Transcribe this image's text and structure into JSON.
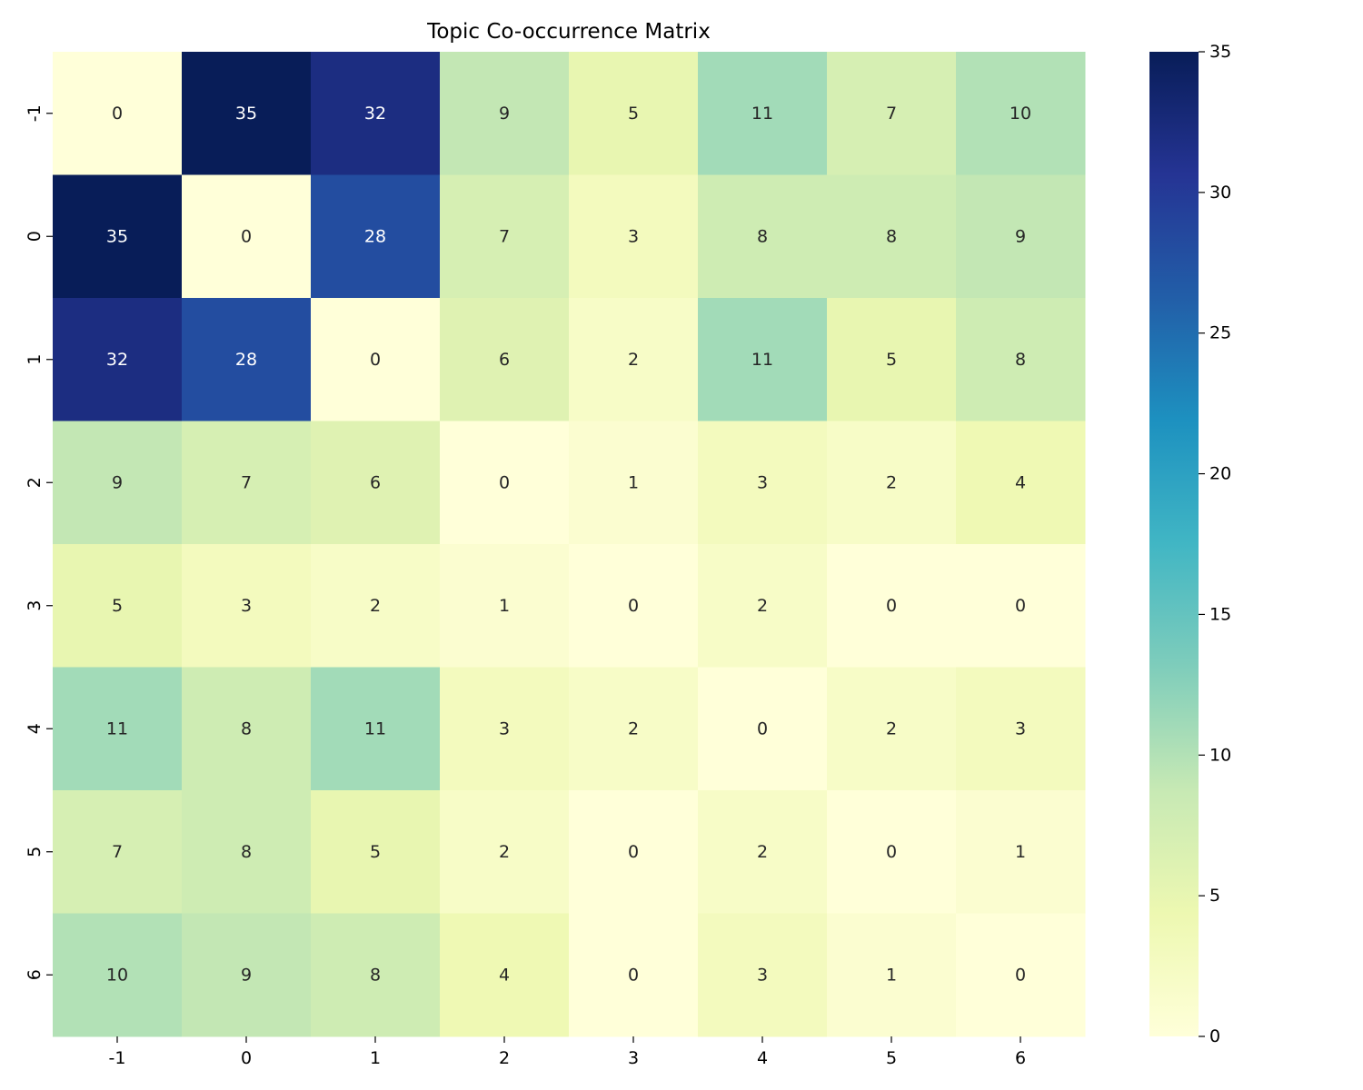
{
  "chart_data": {
    "type": "heatmap",
    "title": "Topic Co-occurrence Matrix",
    "xlabel": "",
    "ylabel": "",
    "x_categories": [
      "-1",
      "0",
      "1",
      "2",
      "3",
      "4",
      "5",
      "6"
    ],
    "y_categories": [
      "-1",
      "0",
      "1",
      "2",
      "3",
      "4",
      "5",
      "6"
    ],
    "values": [
      [
        0,
        35,
        32,
        9,
        5,
        11,
        7,
        10
      ],
      [
        35,
        0,
        28,
        7,
        3,
        8,
        8,
        9
      ],
      [
        32,
        28,
        0,
        6,
        2,
        11,
        5,
        8
      ],
      [
        9,
        7,
        6,
        0,
        1,
        3,
        2,
        4
      ],
      [
        5,
        3,
        2,
        1,
        0,
        2,
        0,
        0
      ],
      [
        11,
        8,
        11,
        3,
        2,
        0,
        2,
        3
      ],
      [
        7,
        8,
        5,
        2,
        0,
        2,
        0,
        1
      ],
      [
        10,
        9,
        8,
        4,
        0,
        3,
        1,
        0
      ]
    ],
    "colorbar": {
      "min": 0,
      "max": 35,
      "ticks": [
        "0",
        "5",
        "10",
        "15",
        "20",
        "25",
        "30",
        "35"
      ]
    },
    "colormap": "YlGnBu",
    "colormap_stops": [
      "#ffffd9",
      "#edf8b1",
      "#c7e9b4",
      "#7fcdbb",
      "#41b6c4",
      "#1d91c0",
      "#225ea8",
      "#253494",
      "#081d58"
    ],
    "annotations": true,
    "grid": false
  }
}
